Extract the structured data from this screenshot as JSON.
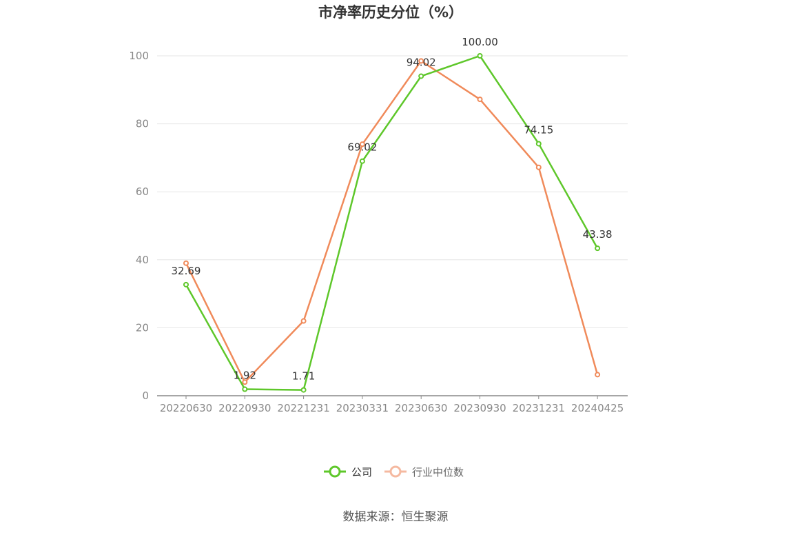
{
  "chart_data": {
    "type": "line",
    "title": "市净率历史分位（%）",
    "categories": [
      "20220630",
      "20220930",
      "20221231",
      "20230331",
      "20230630",
      "20230930",
      "20231231",
      "20240425"
    ],
    "ylim": [
      0,
      100
    ],
    "yticks": [
      "0",
      "20",
      "40",
      "60",
      "80",
      "100"
    ],
    "grid": true,
    "legend_position": "bottom",
    "series": [
      {
        "name": "公司",
        "color": "#5ec72a",
        "values": [
          32.69,
          1.92,
          1.71,
          69.02,
          94.02,
          100.0,
          74.15,
          43.38
        ],
        "labels": [
          "32.69",
          "1.92",
          "1.71",
          "69.02",
          "94.02",
          "100.00",
          "74.15",
          "43.38"
        ]
      },
      {
        "name": "行业中位数",
        "color": "#f08a5a",
        "legend_color": "#f5b9a0",
        "values": [
          39.0,
          4.0,
          22.0,
          74.0,
          98.5,
          87.2,
          67.2,
          6.2
        ]
      }
    ],
    "source": "数据来源：恒生聚源"
  }
}
